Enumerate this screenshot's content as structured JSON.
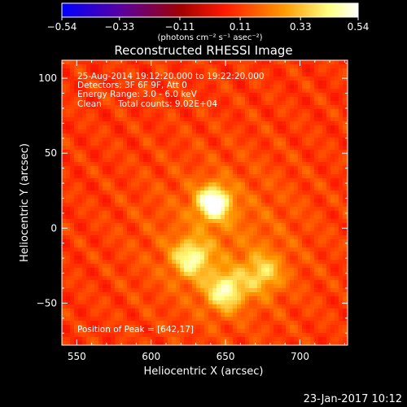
{
  "chart_data": {
    "type": "heatmap",
    "title": "Reconstructed RHESSI Image",
    "xlabel": "Heliocentric X (arcsec)",
    "ylabel": "Heliocentric Y (arcsec)",
    "xlim": [
      540,
      732
    ],
    "ylim": [
      -78,
      112
    ],
    "x_ticks": [
      550,
      600,
      650,
      700
    ],
    "y_ticks": [
      100,
      50,
      0,
      -50
    ],
    "x_tick_labels": [
      "550",
      "600",
      "650",
      "700"
    ],
    "y_tick_labels": [
      "100",
      "50",
      "0",
      "−50"
    ],
    "colorbar": {
      "range": [
        -0.54,
        0.54
      ],
      "ticks": [
        -0.54,
        -0.33,
        -0.11,
        0.11,
        0.33,
        0.54
      ],
      "tick_labels": [
        "−0.54",
        "−0.33",
        "−0.11",
        "0.11",
        "0.33",
        "0.54"
      ],
      "unit_label": "(photons cm⁻² s⁻¹ asec⁻²)",
      "colormap": [
        "#0000ff",
        "#5a00a0",
        "#a00000",
        "#ff1a00",
        "#ff9900",
        "#ffff80",
        "#ffffff"
      ]
    },
    "annotations": {
      "time": "25-Aug-2014 19:12:20.000 to 19:22:20.000",
      "detectors": "Detectors: 3F 6F 9F, Att 0",
      "energy": "Energy Range: 3.0 - 6.0 keV",
      "method": "Clean",
      "counts": "Total counts: 9.02E+04",
      "peak": "Position of Peak = [642,17]"
    },
    "sources": [
      {
        "x": 642,
        "y": 17,
        "peak": 0.54
      },
      {
        "x": 627,
        "y": -20,
        "peak": 0.4
      },
      {
        "x": 650,
        "y": -42,
        "peak": 0.42
      },
      {
        "x": 675,
        "y": -30,
        "peak": 0.33
      }
    ],
    "background_level": 0.1,
    "footer_date": "23-Jan-2017 10:12"
  }
}
